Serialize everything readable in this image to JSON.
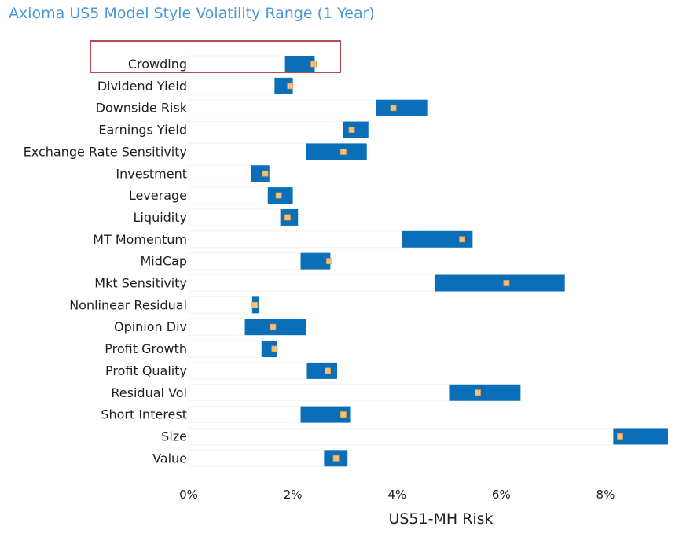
{
  "title": "Axioma US5 Model Style Volatility Range (1 Year)",
  "chart_data": {
    "type": "bar",
    "orientation": "horizontal",
    "subtype": "floating-range-with-marker",
    "title": "Axioma US5 Model Style Volatility Range (1 Year)",
    "xlabel": "US51-MH Risk",
    "ylabel": "",
    "xlim": [
      0,
      9.2
    ],
    "x_ticks": [
      0,
      2,
      4,
      6,
      8
    ],
    "x_tick_labels": [
      "0%",
      "2%",
      "4%",
      "6%",
      "8%"
    ],
    "highlighted_category": "Crowding",
    "categories": [
      "Crowding",
      "Dividend Yield",
      "Downside Risk",
      "Earnings Yield",
      "Exchange Rate Sensitivity",
      "Investment",
      "Leverage",
      "Liquidity",
      "MT Momentum",
      "MidCap",
      "Mkt Sensitivity",
      "Nonlinear Residual",
      "Opinion Div",
      "Profit Growth",
      "Profit Quality",
      "Residual Vol",
      "Short Interest",
      "Size",
      "Value"
    ],
    "series": [
      {
        "values": [
          1.85,
          1.65,
          3.6,
          2.97,
          2.25,
          1.2,
          1.52,
          1.76,
          4.1,
          2.15,
          4.72,
          1.22,
          1.08,
          1.4,
          2.27,
          5.0,
          2.15,
          8.15,
          2.6
        ]
      },
      {
        "values": [
          2.42,
          2.0,
          4.58,
          3.45,
          3.42,
          1.55,
          2.0,
          2.1,
          5.45,
          2.72,
          7.22,
          1.35,
          2.25,
          1.7,
          2.85,
          6.37,
          3.1,
          9.2,
          3.05
        ]
      },
      {
        "values": [
          2.4,
          1.95,
          3.93,
          3.13,
          2.97,
          1.47,
          1.73,
          1.9,
          5.25,
          2.7,
          6.1,
          1.27,
          1.62,
          1.65,
          2.67,
          5.55,
          2.97,
          8.28,
          2.83
        ]
      }
    ],
    "colors": {
      "bar": "#0a6eb9",
      "marker": "#f5c07a",
      "marker_stroke": "#e8a14a",
      "track": "#f2f2f2",
      "highlight_box": "#a31f24"
    }
  }
}
